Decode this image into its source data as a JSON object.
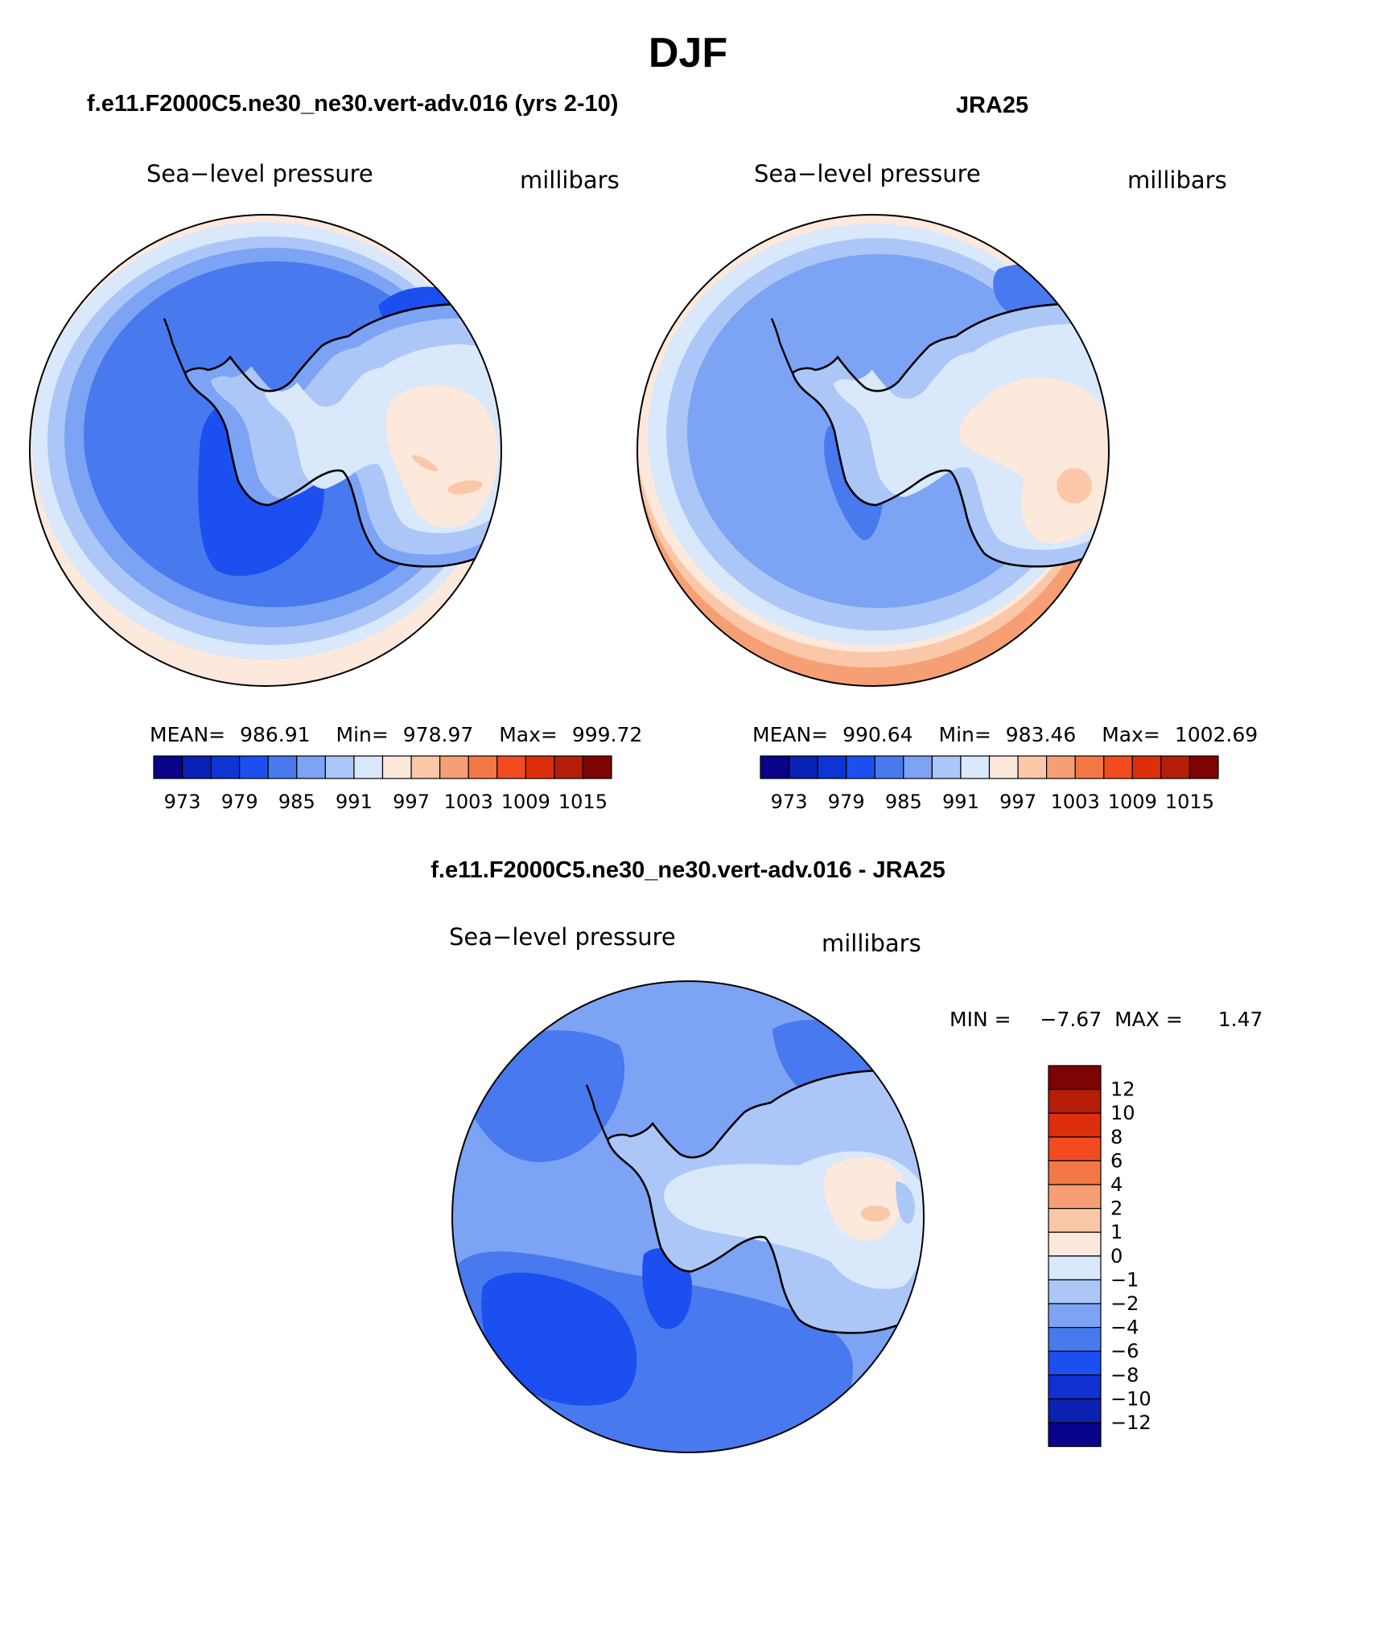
{
  "figure": {
    "season": "DJF",
    "model_case_title": "f.e11.F2000C5.ne30_ne30.vert-adv.016 (yrs 2-10)",
    "obs_title": "JRA25",
    "diff_title": "f.e11.F2000C5.ne30_ne30.vert-adv.016 - JRA25"
  },
  "colors": {
    "abs_scale": [
      "#08038a",
      "#0921b4",
      "#0c35d4",
      "#1c4ff0",
      "#4879ee",
      "#7ca3f4",
      "#acc7f7",
      "#d9e8fb",
      "#fde8dc",
      "#fbc7a9",
      "#f79f74",
      "#f47746",
      "#f14b1f",
      "#dd2f0c",
      "#b41d07",
      "#7e0303"
    ],
    "diff_scale": [
      "#08038a",
      "#0b21b0",
      "#1030d4",
      "#1c4ff0",
      "#4879ee",
      "#7ca3f4",
      "#acc7f7",
      "#d9e8fb",
      "#fde8dc",
      "#fbc7a9",
      "#f79f74",
      "#f47746",
      "#f14b1f",
      "#dd2f0c",
      "#b41d07",
      "#7e0303"
    ],
    "coastline": "#000000"
  },
  "chart_data": [
    {
      "type": "heatmap",
      "projection": "south-polar-stereographic",
      "title": "f.e11.F2000C5.ne30_ne30.vert-adv.016 (yrs 2-10)",
      "left_label": "Sea−level pressure",
      "right_label": "millibars",
      "stats": {
        "mean_label": "MEAN=",
        "mean": "986.91",
        "min_label": "Min=",
        "min": "978.97",
        "max_label": "Max=",
        "max": "999.72"
      },
      "colorbar_ticks": [
        "973",
        "979",
        "985",
        "991",
        "997",
        "1003",
        "1009",
        "1015"
      ],
      "contour_levels": [
        973,
        976,
        979,
        982,
        985,
        988,
        991,
        994,
        997,
        1000,
        1003,
        1006,
        1009,
        1012,
        1015
      ],
      "units": "millibars"
    },
    {
      "type": "heatmap",
      "projection": "south-polar-stereographic",
      "title": "JRA25",
      "left_label": "Sea−level pressure",
      "right_label": "millibars",
      "stats": {
        "mean_label": "MEAN=",
        "mean": "990.64",
        "min_label": "Min=",
        "min": "983.46",
        "max_label": "Max=",
        "max": "1002.69"
      },
      "colorbar_ticks": [
        "973",
        "979",
        "985",
        "991",
        "997",
        "1003",
        "1009",
        "1015"
      ],
      "contour_levels": [
        973,
        976,
        979,
        982,
        985,
        988,
        991,
        994,
        997,
        1000,
        1003,
        1006,
        1009,
        1012,
        1015
      ],
      "units": "millibars"
    },
    {
      "type": "heatmap",
      "projection": "south-polar-stereographic",
      "title": "f.e11.F2000C5.ne30_ne30.vert-adv.016 - JRA25",
      "left_label": "Sea−level pressure",
      "right_label": "millibars",
      "stats": {
        "min_label": "MIN =",
        "min": "−7.67",
        "max_label": "MAX =",
        "max": "1.47"
      },
      "colorbar_ticks": [
        "12",
        "10",
        "8",
        "6",
        "4",
        "2",
        "1",
        "0",
        "−1",
        "−2",
        "−4",
        "−6",
        "−8",
        "−10",
        "−12"
      ],
      "contour_levels": [
        -12,
        -10,
        -8,
        -6,
        -4,
        -2,
        -1,
        0,
        1,
        2,
        4,
        6,
        8,
        10,
        12
      ],
      "units": "millibars"
    }
  ]
}
